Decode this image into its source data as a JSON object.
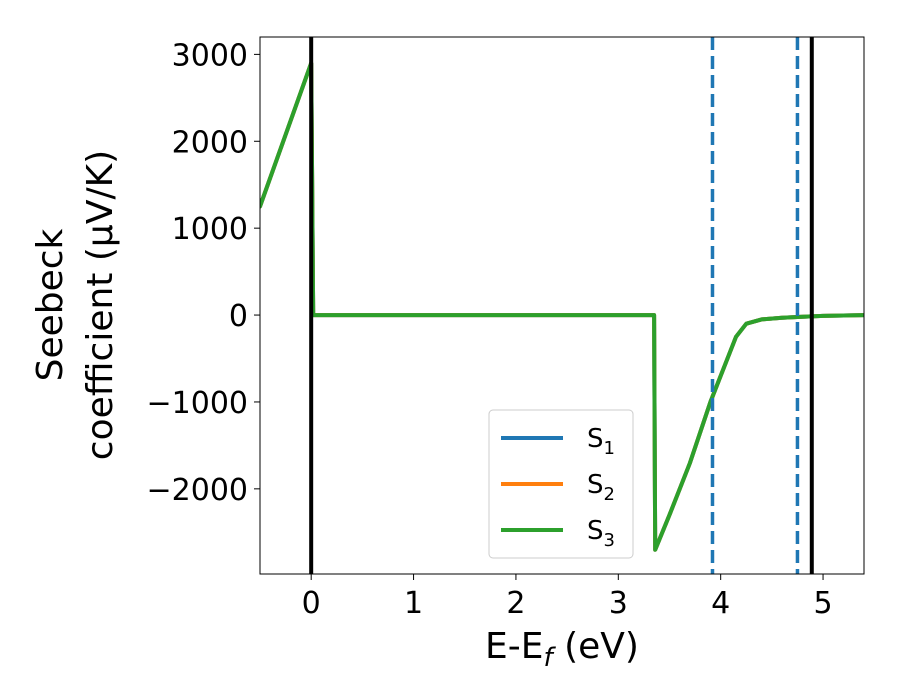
{
  "chart_data": {
    "type": "line",
    "xlabel": "E-E_f (eV)",
    "ylabel_line1": "Seebeck",
    "ylabel_line2": "coefficient  (μV/K)",
    "xlim": [
      -0.5,
      5.4
    ],
    "ylim": [
      -2980,
      3200
    ],
    "xticks": [
      0,
      1,
      2,
      3,
      4,
      5
    ],
    "xtick_labels": [
      "0",
      "1",
      "2",
      "3",
      "4",
      "5"
    ],
    "yticks": [
      3000,
      2000,
      1000,
      0,
      -1000,
      -2000
    ],
    "ytick_labels": [
      "3000",
      "2000",
      "1000",
      "0",
      "−1000",
      "−2000"
    ],
    "grid": false,
    "legend_position": "lower-right",
    "series": [
      {
        "name": "S1",
        "color": "#1f77b4",
        "x": [
          -0.5,
          0.0,
          0.02,
          3.35,
          3.36,
          3.5,
          3.7,
          3.9,
          4.05,
          4.15,
          4.25,
          4.4,
          4.6,
          4.8,
          5.0,
          5.2,
          5.4
        ],
        "y": [
          1250,
          2900,
          0,
          0,
          -2700,
          -2300,
          -1700,
          -1000,
          -550,
          -250,
          -100,
          -50,
          -30,
          -20,
          -10,
          -5,
          0
        ]
      },
      {
        "name": "S2",
        "color": "#ff7f0e",
        "x": [
          -0.5,
          0.0,
          0.02,
          3.35,
          3.36,
          3.5,
          3.7,
          3.9,
          4.05,
          4.15,
          4.25,
          4.4,
          4.6,
          4.8,
          5.0,
          5.2,
          5.4
        ],
        "y": [
          1250,
          2900,
          0,
          0,
          -2700,
          -2300,
          -1700,
          -1000,
          -550,
          -250,
          -100,
          -50,
          -30,
          -20,
          -10,
          -5,
          0
        ]
      },
      {
        "name": "S3",
        "color": "#2ca02c",
        "x": [
          -0.5,
          0.0,
          0.02,
          3.35,
          3.36,
          3.5,
          3.7,
          3.9,
          4.05,
          4.15,
          4.25,
          4.4,
          4.6,
          4.8,
          5.0,
          5.2,
          5.4
        ],
        "y": [
          1250,
          2900,
          0,
          0,
          -2700,
          -2300,
          -1700,
          -1000,
          -550,
          -250,
          -100,
          -50,
          -30,
          -20,
          -10,
          -5,
          0
        ]
      }
    ],
    "vlines": [
      {
        "x": 0.0,
        "style": "solid",
        "color": "#000000"
      },
      {
        "x": 4.89,
        "style": "solid",
        "color": "#000000"
      },
      {
        "x": 3.92,
        "style": "dashed",
        "color": "#1f77b4"
      },
      {
        "x": 4.75,
        "style": "dashed",
        "color": "#1f77b4"
      }
    ]
  }
}
